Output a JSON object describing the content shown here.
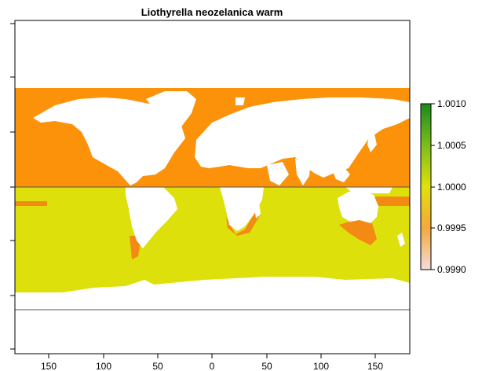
{
  "title": "Liothyrella neozelanica warm",
  "x_ticks": [
    "150",
    "100",
    "50",
    "0",
    "50",
    "100",
    "150"
  ],
  "legend": {
    "ticks": [
      "1.0010",
      "1.0005",
      "1.0000",
      "0.9995",
      "0.9990"
    ]
  },
  "colors": {
    "northern_band": "#fb9209",
    "southern_band": "#dde00a",
    "coast_edge": "#f28a14",
    "legend_top": "#1b8a1b",
    "legend_green": "#7cbd1c",
    "legend_mid": "#e0e00a",
    "legend_orange": "#f3a93c",
    "legend_bottom": "#f4dcdc"
  },
  "chart_data": {
    "type": "heatmap",
    "title": "Liothyrella neozelanica warm",
    "x_ticks": [
      150,
      100,
      50,
      0,
      50,
      100,
      150
    ],
    "legend_range": [
      0.999,
      1.001
    ],
    "legend_ticks": [
      1.001,
      1.0005,
      1.0,
      0.9995,
      0.999
    ],
    "bands": [
      {
        "region": "northern",
        "value": 0.9995
      },
      {
        "region": "southern",
        "value": 1.0
      }
    ]
  }
}
